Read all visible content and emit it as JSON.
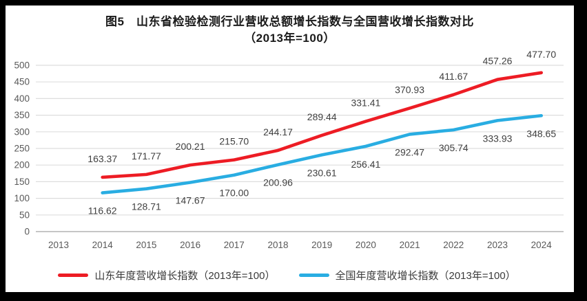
{
  "window": {
    "outer_background": "#000000",
    "panel_background": "#ffffff"
  },
  "title": {
    "line1": "图5　山东省检验检测行业营收总额增长指数与全国营收增长指数对比",
    "line2": "（2013年=100）"
  },
  "chart_data": {
    "type": "line",
    "title": "图5 山东省检验检测行业营收总额增长指数与全国营收增长指数对比（2013年=100）",
    "categories": [
      "2013",
      "2014",
      "2015",
      "2016",
      "2017",
      "2018",
      "2019",
      "2020",
      "2021",
      "2022",
      "2023",
      "2024"
    ],
    "series": [
      {
        "name": "山东年度营收增长指数（2013年=100）",
        "color": "#ed1c24",
        "x": [
          2014,
          2015,
          2016,
          2017,
          2018,
          2019,
          2020,
          2021,
          2022,
          2023,
          2024
        ],
        "values": [
          163.37,
          171.77,
          200.21,
          215.7,
          244.17,
          289.44,
          331.41,
          370.93,
          411.67,
          457.26,
          477.7
        ],
        "label_position": "above"
      },
      {
        "name": "全国年度营收增长指数（2013年=100）",
        "color": "#29ade2",
        "x": [
          2014,
          2015,
          2016,
          2017,
          2018,
          2019,
          2020,
          2021,
          2022,
          2023,
          2024
        ],
        "values": [
          116.62,
          128.71,
          147.67,
          170.0,
          200.96,
          230.61,
          256.41,
          292.47,
          305.74,
          333.93,
          348.65
        ],
        "label_position": "below"
      }
    ],
    "ylim": [
      0,
      500
    ],
    "ytick_step": 50,
    "grid": "horizontal-only",
    "legend_position": "bottom",
    "data_labels_decimals": 2,
    "styles": {
      "grid_color": "#dddddd",
      "axis_line_color": "#b3b3b3",
      "tick_label_color": "#595959",
      "data_label_color": "#3f3f3f"
    }
  }
}
